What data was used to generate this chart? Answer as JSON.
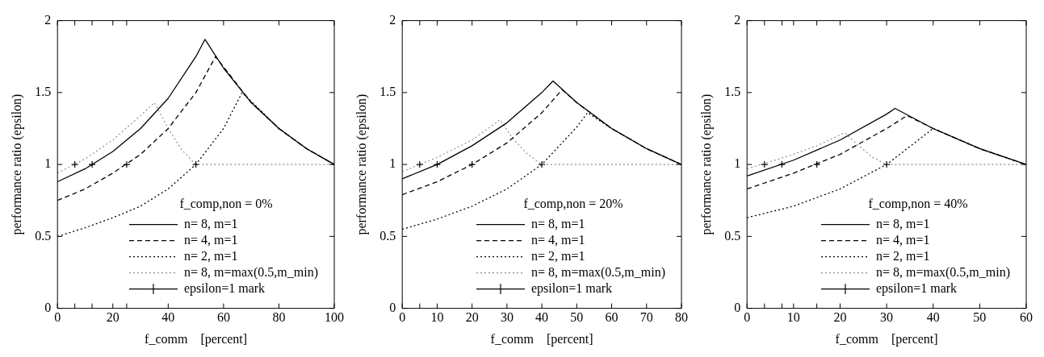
{
  "chart_data": [
    {
      "type": "line",
      "legend_title": "f_comp,non = 0%",
      "xlabel": "f_comm    [percent]",
      "ylabel": "performance ratio (epsilon)",
      "xlim": [
        0,
        100
      ],
      "xticks": [
        0,
        {
          "value": 6.25,
          "label": null
        },
        {
          "value": 12.5,
          "label": null
        },
        20,
        {
          "value": 25,
          "label": null
        },
        40,
        60,
        80,
        100
      ],
      "ylim": [
        0,
        2
      ],
      "yticks": [
        0,
        0.5,
        1,
        1.5,
        2
      ],
      "legend": "bottom right",
      "series": [
        {
          "name": "n= 8, m=1",
          "color": "#000000",
          "line_style": "solid",
          "marker": "none",
          "x": [
            0,
            10,
            20,
            30,
            40,
            50,
            53.3,
            60,
            70,
            80,
            90,
            100
          ],
          "values": [
            0.88,
            0.97,
            1.09,
            1.25,
            1.46,
            1.75,
            1.87,
            1.67,
            1.43,
            1.25,
            1.11,
            1
          ]
        },
        {
          "name": "n= 4, m=1",
          "color": "#000000",
          "line_style": "dashed",
          "marker": "none",
          "x": [
            0,
            10,
            20,
            30,
            40,
            50,
            57.1,
            70,
            80,
            90,
            100
          ],
          "values": [
            0.75,
            0.83,
            0.94,
            1.07,
            1.25,
            1.5,
            1.75,
            1.43,
            1.25,
            1.11,
            1
          ]
        },
        {
          "name": "n= 2, m=1",
          "color": "#000000",
          "line_style": "dotted",
          "marker": "none",
          "x": [
            0,
            10,
            20,
            30,
            40,
            50,
            60,
            66.7,
            80,
            90,
            100
          ],
          "values": [
            0.5,
            0.56,
            0.63,
            0.71,
            0.83,
            1,
            1.25,
            1.5,
            1.25,
            1.11,
            1
          ]
        },
        {
          "name": "n= 8, m=max(0.5,m_min)",
          "color": "#888888",
          "line_style": "dotted",
          "marker": "none",
          "x": [
            0,
            10,
            20,
            30,
            35,
            40,
            45,
            50,
            100
          ],
          "values": [
            0.94,
            1.04,
            1.17,
            1.34,
            1.43,
            1.25,
            1.1,
            1,
            1
          ]
        },
        {
          "name": "epsilon=1 mark",
          "type": "scatter",
          "color": "#000000",
          "marker": "cross",
          "x": [
            6.25,
            12.5,
            25,
            50
          ],
          "values": [
            1,
            1,
            1,
            1
          ]
        }
      ]
    },
    {
      "type": "line",
      "legend_title": "f_comp,non = 20%",
      "xlabel": "f_comm    [percent]",
      "ylabel": "performance ratio (epsilon)",
      "xlim": [
        0,
        80
      ],
      "xticks": [
        0,
        {
          "value": 5,
          "label": null
        },
        10,
        20,
        30,
        40,
        50,
        60,
        70,
        80
      ],
      "ylim": [
        0,
        2
      ],
      "yticks": [
        0,
        0.5,
        1,
        1.5,
        2
      ],
      "legend": "bottom right",
      "series": [
        {
          "name": "n= 8, m=1",
          "color": "#000000",
          "line_style": "solid",
          "marker": "none",
          "x": [
            0,
            10,
            20,
            30,
            40,
            43.2,
            50,
            60,
            70,
            80
          ],
          "values": [
            0.9,
            1,
            1.13,
            1.29,
            1.5,
            1.58,
            1.43,
            1.25,
            1.11,
            1
          ]
        },
        {
          "name": "n= 4, m=1",
          "color": "#000000",
          "line_style": "dashed",
          "marker": "none",
          "x": [
            0,
            10,
            20,
            30,
            40,
            45.8,
            50,
            60,
            70,
            80
          ],
          "values": [
            0.79,
            0.88,
            1,
            1.15,
            1.36,
            1.52,
            1.43,
            1.25,
            1.11,
            1
          ]
        },
        {
          "name": "n= 2, m=1",
          "color": "#000000",
          "line_style": "dotted",
          "marker": "none",
          "x": [
            0,
            10,
            20,
            30,
            40,
            50,
            53.1,
            60,
            70,
            80
          ],
          "values": [
            0.55,
            0.62,
            0.71,
            0.83,
            1,
            1.26,
            1.36,
            1.25,
            1.11,
            1
          ]
        },
        {
          "name": "n= 8, m=max(0.5,m_min)",
          "color": "#888888",
          "line_style": "dotted",
          "marker": "none",
          "x": [
            0,
            10,
            20,
            28,
            32,
            36,
            40,
            80
          ],
          "values": [
            0.95,
            1.05,
            1.17,
            1.31,
            1.17,
            1.07,
            1,
            1
          ]
        },
        {
          "name": "epsilon=1 mark",
          "type": "scatter",
          "color": "#000000",
          "marker": "cross",
          "x": [
            5,
            10,
            20,
            40
          ],
          "values": [
            1,
            1,
            1,
            1
          ]
        }
      ]
    },
    {
      "type": "line",
      "legend_title": "f_comp,non = 40%",
      "xlabel": "f_comm    [percent]",
      "ylabel": "performance ratio (epsilon)",
      "xlim": [
        0,
        60
      ],
      "xticks": [
        0,
        {
          "value": 3.75,
          "label": null
        },
        {
          "value": 7.5,
          "label": null
        },
        10,
        {
          "value": 15,
          "label": null
        },
        20,
        30,
        40,
        50,
        60
      ],
      "ylim": [
        0,
        2
      ],
      "yticks": [
        0,
        0.5,
        1,
        1.5,
        2
      ],
      "legend": "bottom right",
      "series": [
        {
          "name": "n= 8, m=1",
          "color": "#000000",
          "line_style": "solid",
          "marker": "none",
          "x": [
            0,
            10,
            20,
            30,
            31.8,
            40,
            50,
            60
          ],
          "values": [
            0.92,
            1.03,
            1.17,
            1.35,
            1.39,
            1.25,
            1.11,
            1
          ]
        },
        {
          "name": "n= 4, m=1",
          "color": "#000000",
          "line_style": "dashed",
          "marker": "none",
          "x": [
            0,
            10,
            20,
            30,
            34.4,
            40,
            50,
            60
          ],
          "values": [
            0.83,
            0.94,
            1.07,
            1.25,
            1.34,
            1.25,
            1.11,
            1
          ]
        },
        {
          "name": "n= 2, m=1",
          "color": "#000000",
          "line_style": "dotted",
          "marker": "none",
          "x": [
            0,
            10,
            20,
            30,
            40,
            50,
            60
          ],
          "values": [
            0.63,
            0.71,
            0.83,
            1,
            1.25,
            1.11,
            1
          ]
        },
        {
          "name": "n= 8, m=max(0.5,m_min)",
          "color": "#888888",
          "line_style": "dotted",
          "marker": "none",
          "x": [
            0,
            10,
            15,
            21,
            24,
            27,
            30,
            60
          ],
          "values": [
            0.97,
            1.07,
            1.13,
            1.22,
            1.13,
            1.05,
            1,
            1
          ]
        },
        {
          "name": "epsilon=1 mark",
          "type": "scatter",
          "color": "#000000",
          "marker": "cross",
          "x": [
            3.75,
            7.5,
            15,
            30
          ],
          "values": [
            1,
            1,
            1,
            1
          ]
        }
      ]
    }
  ]
}
